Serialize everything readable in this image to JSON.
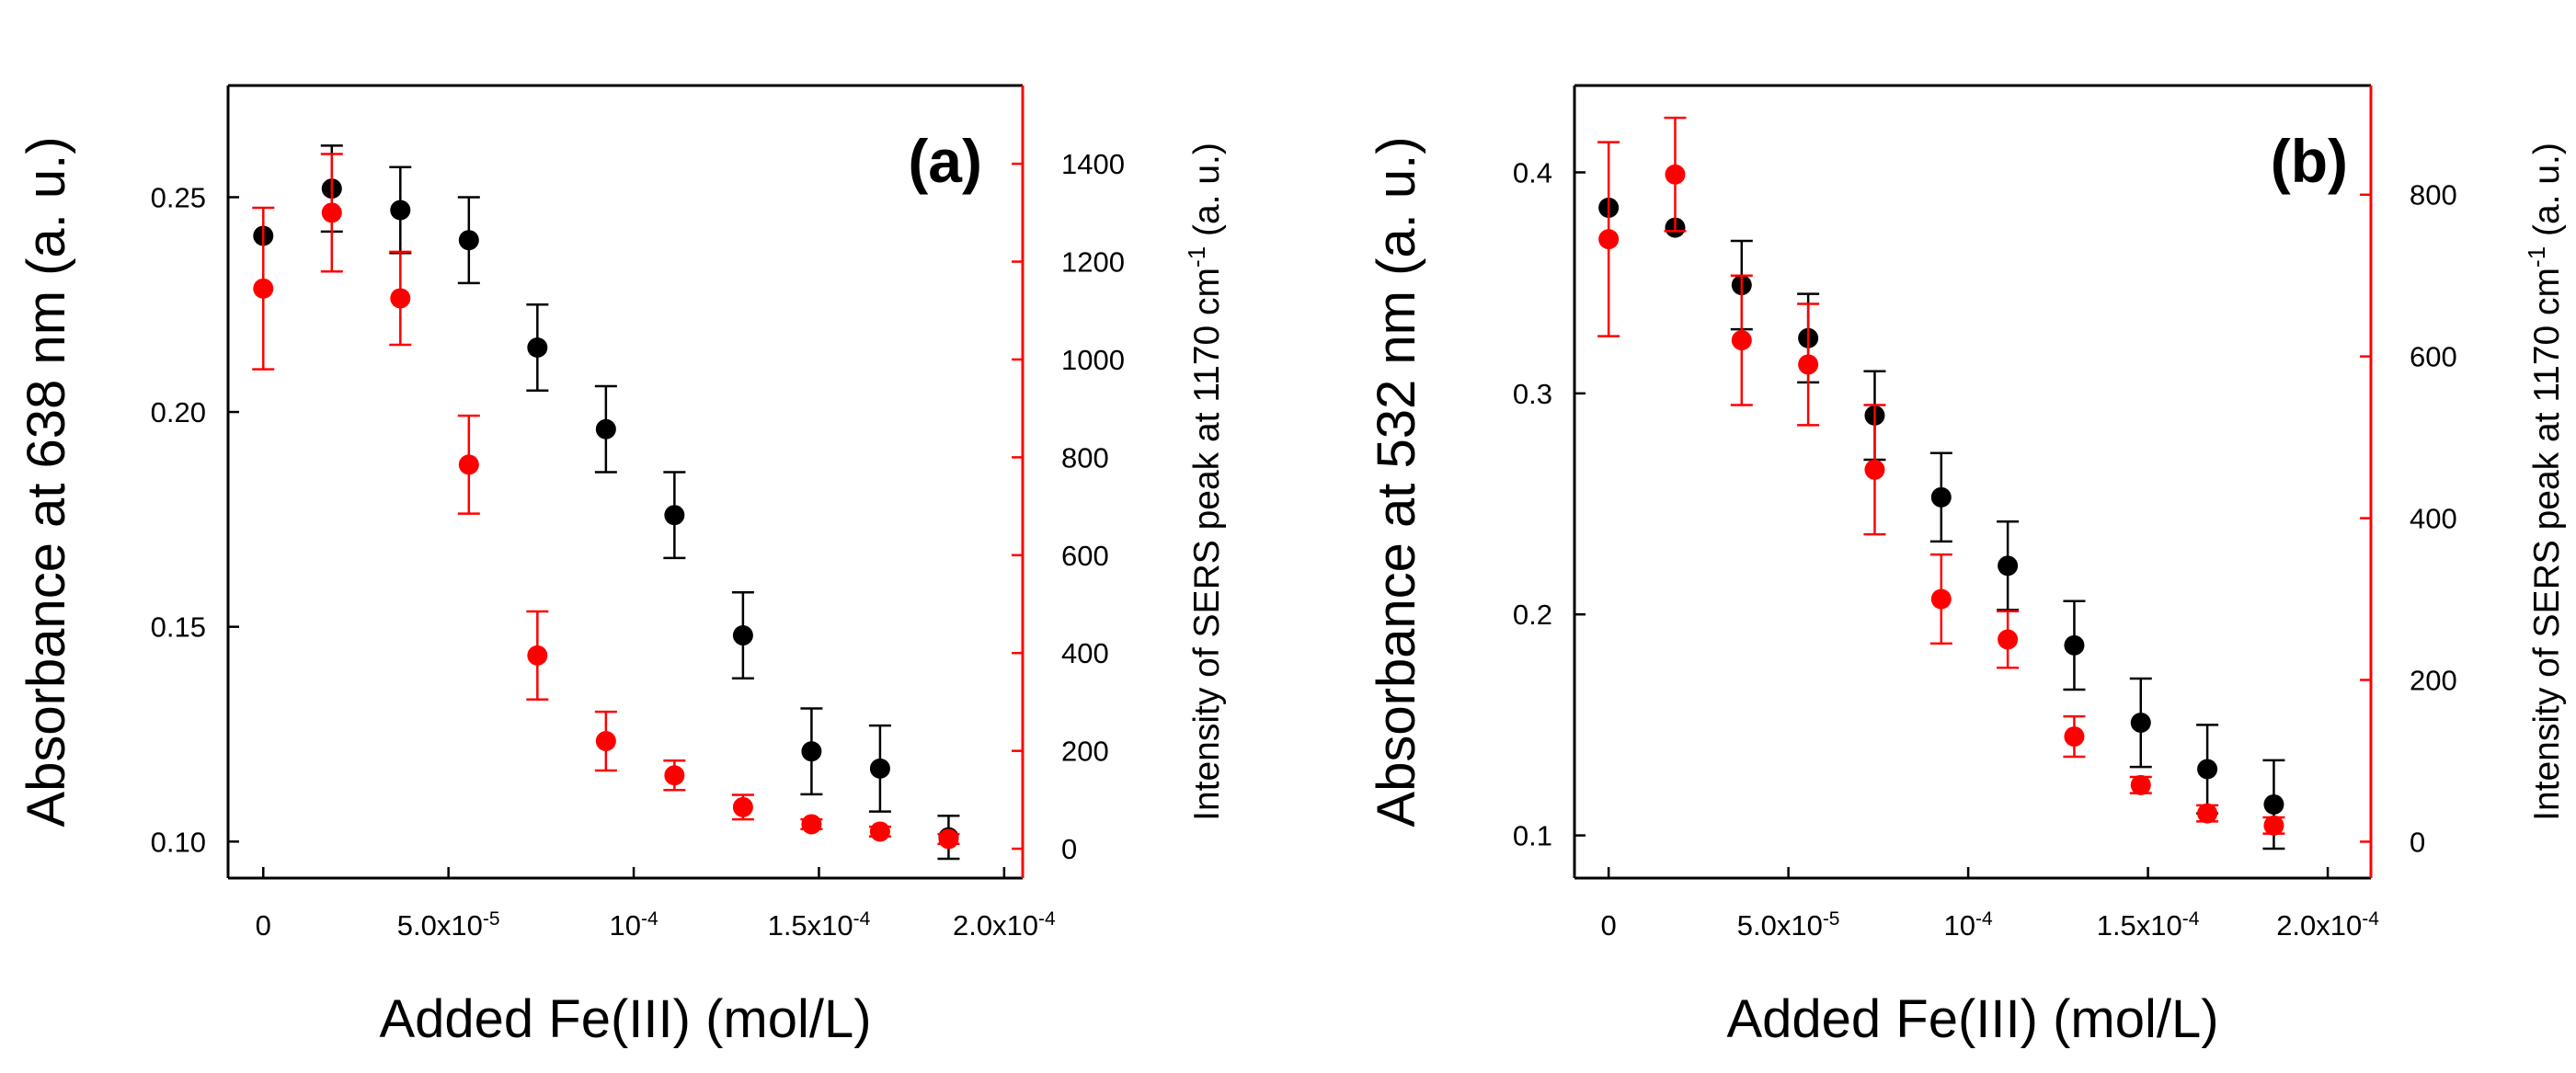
{
  "colors": {
    "absorbance": "#000000",
    "sers": "#ff0000",
    "axis": "#000000"
  },
  "chart_data": [
    {
      "type": "scatter",
      "panel_label": "(a)",
      "xlabel": "Added Fe(III) (mol/L)",
      "ylabel_left": "Absorbance at 638 nm (a. u.)",
      "ylabel_right": {
        "main": "Intensity of SERS peak at 1170 cm",
        "sup": "-1",
        "tail": " (a. u.)"
      },
      "xlim": [
        -9.5e-06,
        0.000205
      ],
      "ylim_left": [
        0.0915,
        0.276
      ],
      "ylim_right": [
        -60,
        1560
      ],
      "x_ticks": [
        {
          "value": 0,
          "main": "0",
          "exp": ""
        },
        {
          "value": 5e-05,
          "main": "5.0x10",
          "exp": "-5"
        },
        {
          "value": 0.0001,
          "main": "10",
          "exp": "-4"
        },
        {
          "value": 0.00015,
          "main": "1.5x10",
          "exp": "-4"
        },
        {
          "value": 0.0002,
          "main": "2.0x10",
          "exp": "-4"
        }
      ],
      "y_ticks_left": [
        {
          "value": 0.1,
          "label": "0.10"
        },
        {
          "value": 0.15,
          "label": "0.15"
        },
        {
          "value": 0.2,
          "label": "0.20"
        },
        {
          "value": 0.25,
          "label": "0.25"
        }
      ],
      "y_ticks_right": [
        {
          "value": 0,
          "label": "0"
        },
        {
          "value": 200,
          "label": "200"
        },
        {
          "value": 400,
          "label": "400"
        },
        {
          "value": 600,
          "label": "600"
        },
        {
          "value": 800,
          "label": "800"
        },
        {
          "value": 1000,
          "label": "1000"
        },
        {
          "value": 1200,
          "label": "1200"
        },
        {
          "value": 1400,
          "label": "1400"
        }
      ],
      "series": [
        {
          "name": "Absorbance at 638 nm",
          "axis": "left",
          "color": "#000000",
          "x": [
            0,
            1.85e-05,
            3.7e-05,
            5.55e-05,
            7.4e-05,
            9.25e-05,
            0.000111,
            0.0001295,
            0.000148,
            0.0001665,
            0.000185
          ],
          "y": [
            0.241,
            0.252,
            0.247,
            0.24,
            0.215,
            0.196,
            0.176,
            0.148,
            0.121,
            0.117,
            0.101
          ],
          "err": [
            0.0,
            0.01,
            0.01,
            0.01,
            0.01,
            0.01,
            0.01,
            0.01,
            0.01,
            0.01,
            0.005
          ]
        },
        {
          "name": "Intensity of SERS peak at 1170 cm-1",
          "axis": "right",
          "color": "#ff0000",
          "x": [
            0,
            1.85e-05,
            3.7e-05,
            5.55e-05,
            7.4e-05,
            9.25e-05,
            0.000111,
            0.0001295,
            0.000148,
            0.0001665,
            0.000185
          ],
          "y": [
            1145,
            1300,
            1125,
            785,
            395,
            220,
            150,
            85,
            50,
            35,
            20
          ],
          "err": [
            165,
            120,
            95,
            100,
            90,
            60,
            30,
            25,
            10,
            10,
            10
          ]
        }
      ]
    },
    {
      "type": "scatter",
      "panel_label": "(b)",
      "xlabel": "Added Fe(III) (mol/L)",
      "ylabel_left": "Absorbance  at 532 nm (a. u.)",
      "ylabel_right": {
        "main": "Intensity of SERS peak  at 1170 cm",
        "sup": "-1",
        "tail": " (a. u.)"
      },
      "xlim": [
        -9.5e-06,
        0.000212
      ],
      "ylim_left": [
        0.0807,
        0.4393
      ],
      "ylim_right": [
        -45,
        935
      ],
      "x_ticks": [
        {
          "value": 0,
          "main": "0",
          "exp": ""
        },
        {
          "value": 5e-05,
          "main": "5.0x10",
          "exp": "-5"
        },
        {
          "value": 0.0001,
          "main": "10",
          "exp": "-4"
        },
        {
          "value": 0.00015,
          "main": "1.5x10",
          "exp": "-4"
        },
        {
          "value": 0.0002,
          "main": "2.0x10",
          "exp": "-4"
        }
      ],
      "y_ticks_left": [
        {
          "value": 0.1,
          "label": "0.1"
        },
        {
          "value": 0.2,
          "label": "0.2"
        },
        {
          "value": 0.3,
          "label": "0.3"
        },
        {
          "value": 0.4,
          "label": "0.4"
        }
      ],
      "y_ticks_right": [
        {
          "value": 0,
          "label": "0"
        },
        {
          "value": 200,
          "label": "200"
        },
        {
          "value": 400,
          "label": "400"
        },
        {
          "value": 600,
          "label": "600"
        },
        {
          "value": 800,
          "label": "800"
        }
      ],
      "series": [
        {
          "name": "Absorbance at 532 nm",
          "axis": "left",
          "color": "#000000",
          "x": [
            0,
            1.85e-05,
            3.7e-05,
            5.55e-05,
            7.4e-05,
            9.25e-05,
            0.000111,
            0.0001295,
            0.000148,
            0.0001665,
            0.000185
          ],
          "y": [
            0.384,
            0.375,
            0.349,
            0.325,
            0.29,
            0.253,
            0.222,
            0.186,
            0.151,
            0.13,
            0.114
          ],
          "err": [
            0.0,
            0.0,
            0.02,
            0.02,
            0.02,
            0.02,
            0.02,
            0.02,
            0.02,
            0.02,
            0.02
          ]
        },
        {
          "name": "Intensity of SERS peak at 1170 cm-1",
          "axis": "right",
          "color": "#ff0000",
          "x": [
            0,
            1.85e-05,
            3.7e-05,
            5.55e-05,
            7.4e-05,
            9.25e-05,
            0.000111,
            0.0001295,
            0.000148,
            0.0001665,
            0.000185
          ],
          "y": [
            745,
            825,
            620,
            590,
            460,
            300,
            250,
            130,
            70,
            35,
            20
          ],
          "err": [
            120,
            70,
            80,
            75,
            80,
            55,
            35,
            25,
            10,
            10,
            10
          ]
        }
      ]
    }
  ]
}
